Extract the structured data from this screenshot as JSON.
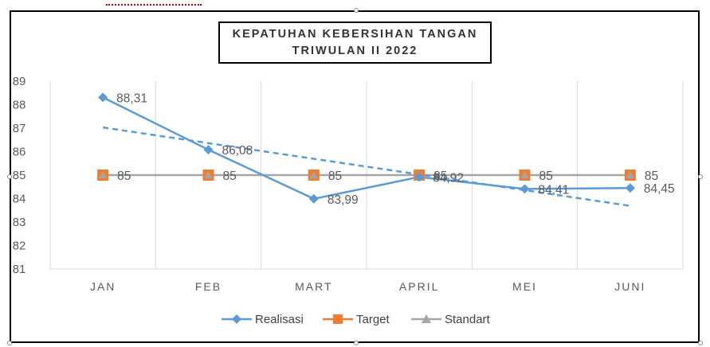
{
  "chart_data": {
    "type": "line",
    "title_lines": [
      "KEPATUHAN KEBERSIHAN TANGAN",
      "TRIWULAN II 2022"
    ],
    "categories": [
      "JAN",
      "FEB",
      "MART",
      "APRIL",
      "MEI",
      "JUNI"
    ],
    "ylim": [
      81,
      89
    ],
    "yticks": [
      "81",
      "82",
      "83",
      "84",
      "85",
      "86",
      "87",
      "88",
      "89"
    ],
    "grid": "vertical",
    "legend_position": "bottom",
    "series": [
      {
        "name": "Realisasi",
        "values": [
          88.31,
          86.08,
          83.99,
          84.92,
          84.41,
          84.45
        ],
        "labels": [
          "88,31",
          "86,08",
          "83,99",
          "84,92",
          "84,41",
          "84,45"
        ],
        "color": "#5b9bd5",
        "marker": "diamond"
      },
      {
        "name": "Target",
        "values": [
          85,
          85,
          85,
          85,
          85,
          85
        ],
        "labels": [
          "85",
          "85",
          "85",
          "85",
          "85",
          "85"
        ],
        "color": "#ed7d31",
        "marker": "square"
      },
      {
        "name": "Standart",
        "values": [
          85,
          85,
          85,
          85,
          85,
          85
        ],
        "labels": [],
        "color": "#a5a5a5",
        "marker": "triangle"
      }
    ],
    "trendline": {
      "series": "Realisasi",
      "type": "linear",
      "style": "dashed",
      "color": "#5b9bd5"
    }
  }
}
